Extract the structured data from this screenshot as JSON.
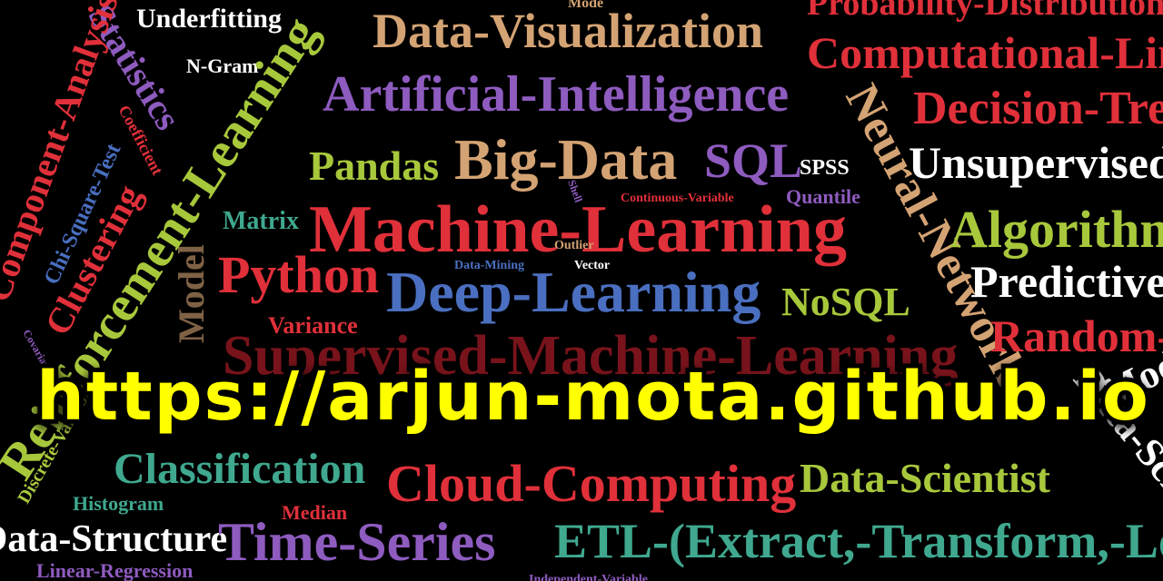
{
  "banner": {
    "url": "https://arjun-mota.github.io",
    "words": [
      "Underfitting",
      "Mode",
      "Data-Visualization",
      "Probability-Distribution",
      "Computational-Linguistics",
      "Statistics",
      "N-Gram",
      "Artificial-Intelligence",
      "Decision-Trees",
      "Component-Analysis",
      "Chi-Square-Test",
      "Coefficient",
      "Reinforcement-Learning",
      "Neural-Networks",
      "Pandas",
      "Big-Data",
      "SQL",
      "SPSS",
      "Unsupervised-Learning",
      "Shell",
      "Continuous-Variable",
      "Quantile",
      "Clustering",
      "Matrix",
      "Machine-Learning",
      "Algorithms",
      "Outlier",
      "Python",
      "Data-Mining",
      "Vector",
      "Deep-Learning",
      "NoSQL",
      "Predictive-Analytics",
      "Model",
      "Variance",
      "Supervised-Machine-Learning",
      "Random-Forest",
      "Covariance",
      "Discrete-Variable",
      "Model-Selection",
      "Data-Science",
      "Classification",
      "Cloud-Computing",
      "Data-Scientist",
      "Histogram",
      "Median",
      "Data-Structure",
      "Time-Series",
      "ETL-(Extract,-Transform,-Load)",
      "Linear-Regression",
      "Independent-Variable"
    ]
  }
}
